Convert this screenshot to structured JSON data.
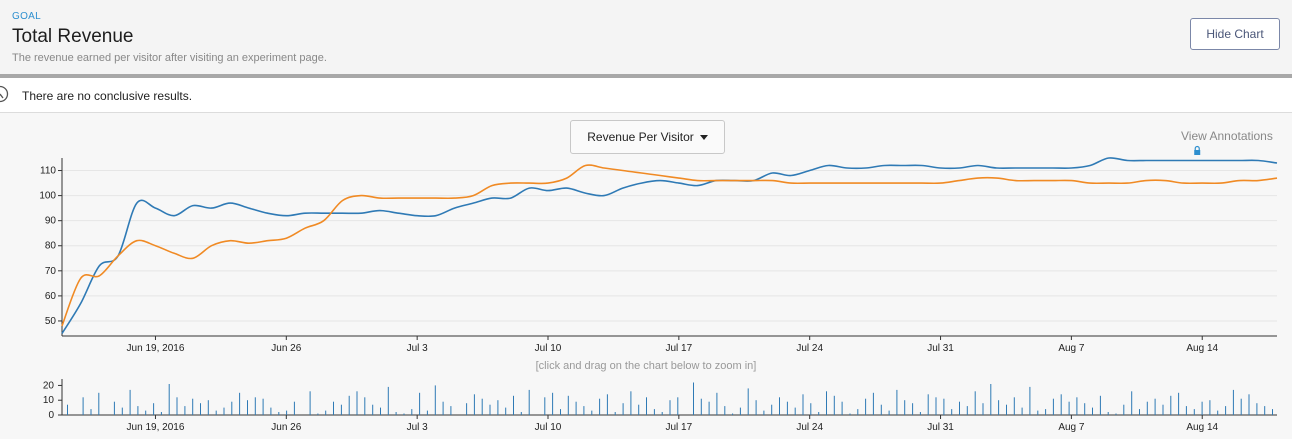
{
  "header": {
    "goal_tag": "GOAL",
    "title": "Total Revenue",
    "description": "The revenue earned per visitor after visiting an experiment page.",
    "hide_chart_label": "Hide Chart"
  },
  "result": {
    "text": "There are no conclusive results."
  },
  "toolbar": {
    "metric_label": "Revenue Per Visitor",
    "view_annotations_label": "View Annotations"
  },
  "hint": "[click and drag on the chart below to zoom in]",
  "colors": {
    "blue": "#2f7ab5",
    "orange": "#f08a24",
    "annotation": "#2d8fcf"
  },
  "chart_data": [
    {
      "type": "line",
      "x_unit": "date",
      "x": [
        "2016-06-14",
        "2016-06-15",
        "2016-06-16",
        "2016-06-17",
        "2016-06-18",
        "2016-06-19",
        "2016-06-20",
        "2016-06-21",
        "2016-06-22",
        "2016-06-23",
        "2016-06-24",
        "2016-06-25",
        "2016-06-26",
        "2016-06-27",
        "2016-06-28",
        "2016-06-29",
        "2016-06-30",
        "2016-07-01",
        "2016-07-02",
        "2016-07-03",
        "2016-07-04",
        "2016-07-05",
        "2016-07-06",
        "2016-07-07",
        "2016-07-08",
        "2016-07-09",
        "2016-07-10",
        "2016-07-11",
        "2016-07-12",
        "2016-07-13",
        "2016-07-14",
        "2016-07-15",
        "2016-07-16",
        "2016-07-17",
        "2016-07-18",
        "2016-07-19",
        "2016-07-20",
        "2016-07-21",
        "2016-07-22",
        "2016-07-23",
        "2016-07-24",
        "2016-07-25",
        "2016-07-26",
        "2016-07-27",
        "2016-07-28",
        "2016-07-29",
        "2016-07-30",
        "2016-07-31",
        "2016-08-01",
        "2016-08-02",
        "2016-08-03",
        "2016-08-04",
        "2016-08-05",
        "2016-08-06",
        "2016-08-07",
        "2016-08-08",
        "2016-08-09",
        "2016-08-10",
        "2016-08-11",
        "2016-08-12",
        "2016-08-13",
        "2016-08-14",
        "2016-08-15",
        "2016-08-16",
        "2016-08-17",
        "2016-08-18"
      ],
      "xticks": [
        "Jun 19, 2016",
        "Jun 26",
        "Jul 3",
        "Jul 10",
        "Jul 17",
        "Jul 24",
        "Jul 31",
        "Aug 7",
        "Aug 14"
      ],
      "xtick_dates": [
        "2016-06-19",
        "2016-06-26",
        "2016-07-03",
        "2016-07-10",
        "2016-07-17",
        "2016-07-24",
        "2016-07-31",
        "2016-08-07",
        "2016-08-14"
      ],
      "yticks": [
        50,
        60,
        70,
        80,
        90,
        100,
        110
      ],
      "ylim": [
        44,
        115
      ],
      "series": [
        {
          "color": "#2f7ab5",
          "values": [
            45,
            57,
            72,
            76,
            97,
            95,
            92,
            96,
            95,
            97,
            95,
            93,
            92,
            93,
            93,
            93,
            93,
            94,
            93,
            92,
            92,
            95,
            97,
            99,
            99,
            103,
            102,
            103,
            101,
            100,
            103,
            105,
            106,
            105,
            104,
            106,
            106,
            106,
            109,
            108,
            110,
            112,
            111,
            111,
            112,
            112,
            112,
            111,
            111,
            112,
            111,
            111,
            111,
            111,
            111,
            112,
            115,
            114,
            114,
            114,
            114,
            114,
            114,
            114,
            114,
            113
          ]
        },
        {
          "color": "#f08a24",
          "values": [
            48,
            67,
            68,
            76,
            82,
            80,
            77,
            75,
            80,
            82,
            81,
            82,
            83,
            87,
            90,
            98,
            100,
            99,
            99,
            99,
            99,
            99,
            100,
            104,
            105,
            105,
            105,
            107,
            112,
            111,
            110,
            109,
            108,
            107,
            106,
            106,
            106,
            106,
            106,
            105,
            105,
            105,
            105,
            105,
            105,
            105,
            105,
            105,
            106,
            107,
            107,
            106,
            106,
            106,
            106,
            105,
            105,
            105,
            106,
            106,
            105,
            105,
            105,
            106,
            106,
            107
          ]
        }
      ]
    },
    {
      "type": "bar",
      "x_unit": "date",
      "xticks": [
        "Jun 19, 2016",
        "Jun 26",
        "Jul 3",
        "Jul 10",
        "Jul 17",
        "Jul 24",
        "Jul 31",
        "Aug 7",
        "Aug 14"
      ],
      "yticks": [
        0,
        10,
        20
      ],
      "ylim": [
        0,
        23
      ],
      "color": "#2f7ab5",
      "values": [
        7,
        0,
        12,
        4,
        15,
        0,
        9,
        5,
        17,
        6,
        3,
        8,
        2,
        21,
        12,
        6,
        11,
        8,
        10,
        3,
        5,
        9,
        15,
        10,
        12,
        11,
        5,
        2,
        3,
        9,
        0,
        16,
        1,
        3,
        9,
        7,
        13,
        16,
        12,
        7,
        5,
        19,
        2,
        1,
        4,
        15,
        3,
        20,
        9,
        6,
        0,
        8,
        14,
        11,
        7,
        10,
        5,
        13,
        2,
        17,
        0,
        12,
        15,
        4,
        13,
        9,
        6,
        3,
        11,
        14,
        2,
        8,
        16,
        7,
        12,
        4,
        2,
        10,
        12,
        0,
        22,
        11,
        9,
        15,
        6,
        1,
        5,
        18,
        10,
        3,
        7,
        12,
        9,
        5,
        14,
        8,
        2,
        16,
        13,
        9,
        1,
        4,
        11,
        15,
        7,
        3,
        17,
        10,
        8,
        2,
        14,
        12,
        11,
        4,
        9,
        6,
        16,
        8,
        21,
        10,
        7,
        12,
        5,
        19,
        3,
        4,
        11,
        14,
        9,
        12,
        8,
        5,
        13,
        2,
        1,
        7,
        16,
        4,
        9,
        11,
        7,
        13,
        15,
        6,
        4,
        9,
        10,
        3,
        6,
        17,
        11,
        14,
        8,
        6,
        4
      ]
    }
  ]
}
